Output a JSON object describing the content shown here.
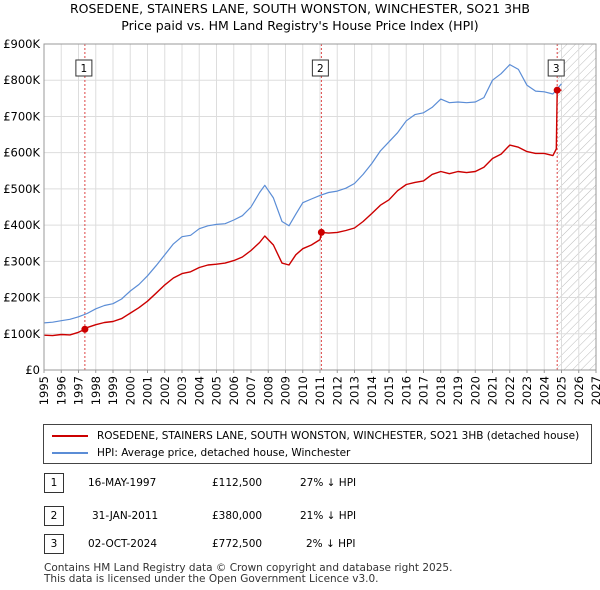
{
  "chart_data": {
    "type": "line",
    "title": "ROSEDENE, STAINERS LANE, SOUTH WONSTON, WINCHESTER, SO21 3HB",
    "subtitle": "Price paid vs. HM Land Registry's House Price Index (HPI)",
    "xlabel": "",
    "ylabel": "",
    "xlim": [
      1995,
      2027
    ],
    "ylim": [
      0,
      900000
    ],
    "y_ticks": [
      {
        "value": 0,
        "label": "£0"
      },
      {
        "value": 100000,
        "label": "£100K"
      },
      {
        "value": 200000,
        "label": "£200K"
      },
      {
        "value": 300000,
        "label": "£300K"
      },
      {
        "value": 400000,
        "label": "£400K"
      },
      {
        "value": 500000,
        "label": "£500K"
      },
      {
        "value": 600000,
        "label": "£600K"
      },
      {
        "value": 700000,
        "label": "£700K"
      },
      {
        "value": 800000,
        "label": "£800K"
      },
      {
        "value": 900000,
        "label": "£900K"
      }
    ],
    "x_ticks": [
      "1995",
      "1996",
      "1997",
      "1998",
      "1999",
      "2000",
      "2001",
      "2002",
      "2003",
      "2004",
      "2005",
      "2006",
      "2007",
      "2008",
      "2009",
      "2010",
      "2011",
      "2012",
      "2013",
      "2014",
      "2015",
      "2016",
      "2017",
      "2018",
      "2019",
      "2020",
      "2021",
      "2022",
      "2023",
      "2024",
      "2025",
      "2026",
      "2027"
    ],
    "grid": true,
    "hatch_from": 2024.75,
    "series": [
      {
        "name": "ROSEDENE, STAINERS LANE, SOUTH WONSTON, WINCHESTER, SO21 3HB (detached house)",
        "color": "#cc0000",
        "x": [
          1995.0,
          1995.5,
          1996.0,
          1996.5,
          1997.0,
          1997.37,
          1997.5,
          1998.0,
          1998.5,
          1999.0,
          1999.5,
          2000.0,
          2000.5,
          2001.0,
          2001.5,
          2002.0,
          2002.5,
          2003.0,
          2003.5,
          2004.0,
          2004.5,
          2005.0,
          2005.5,
          2006.0,
          2006.5,
          2007.0,
          2007.5,
          2007.8,
          2008.3,
          2008.8,
          2009.2,
          2009.6,
          2010.0,
          2010.5,
          2011.0,
          2011.08,
          2011.5,
          2012.0,
          2012.5,
          2013.0,
          2013.5,
          2014.0,
          2014.5,
          2015.0,
          2015.5,
          2016.0,
          2016.5,
          2017.0,
          2017.5,
          2018.0,
          2018.5,
          2019.0,
          2019.5,
          2020.0,
          2020.5,
          2021.0,
          2021.5,
          2022.0,
          2022.5,
          2023.0,
          2023.5,
          2024.0,
          2024.5,
          2024.7,
          2024.75,
          2025.0
        ],
        "values": [
          96000,
          95000,
          98000,
          97000,
          104000,
          112500,
          117000,
          125000,
          131000,
          134000,
          142000,
          157000,
          172000,
          190000,
          212000,
          235000,
          254000,
          266000,
          271000,
          283000,
          290000,
          292000,
          295000,
          302000,
          312000,
          330000,
          352000,
          370000,
          345000,
          295000,
          290000,
          318000,
          335000,
          345000,
          360000,
          380000,
          378000,
          380000,
          385000,
          392000,
          410000,
          432000,
          455000,
          470000,
          495000,
          512000,
          518000,
          522000,
          540000,
          548000,
          542000,
          548000,
          545000,
          548000,
          560000,
          584000,
          596000,
          621000,
          615000,
          603000,
          598000,
          598000,
          592000,
          610000,
          772500,
          772500
        ]
      },
      {
        "name": "HPI: Average price, detached house, Winchester",
        "color": "#5b8dd6",
        "x": [
          1995.0,
          1995.5,
          1996.0,
          1996.5,
          1997.0,
          1997.5,
          1998.0,
          1998.5,
          1999.0,
          1999.5,
          2000.0,
          2000.5,
          2001.0,
          2001.5,
          2002.0,
          2002.5,
          2003.0,
          2003.5,
          2004.0,
          2004.5,
          2005.0,
          2005.5,
          2006.0,
          2006.5,
          2007.0,
          2007.5,
          2007.8,
          2008.3,
          2008.8,
          2009.2,
          2009.6,
          2010.0,
          2010.5,
          2011.0,
          2011.5,
          2012.0,
          2012.5,
          2013.0,
          2013.5,
          2014.0,
          2014.5,
          2015.0,
          2015.5,
          2016.0,
          2016.5,
          2017.0,
          2017.5,
          2018.0,
          2018.5,
          2019.0,
          2019.5,
          2020.0,
          2020.5,
          2021.0,
          2021.5,
          2022.0,
          2022.5,
          2023.0,
          2023.5,
          2024.0,
          2024.5,
          2025.0
        ],
        "values": [
          130000,
          132000,
          136000,
          140000,
          147000,
          156000,
          169000,
          178000,
          183000,
          196000,
          218000,
          236000,
          260000,
          288000,
          318000,
          348000,
          368000,
          372000,
          390000,
          398000,
          402000,
          404000,
          414000,
          426000,
          450000,
          490000,
          510000,
          475000,
          410000,
          398000,
          430000,
          462000,
          472000,
          482000,
          490000,
          494000,
          502000,
          515000,
          540000,
          570000,
          605000,
          630000,
          655000,
          688000,
          705000,
          710000,
          725000,
          748000,
          738000,
          740000,
          738000,
          740000,
          752000,
          800000,
          818000,
          843000,
          830000,
          786000,
          770000,
          768000,
          762000,
          790000
        ]
      }
    ],
    "sales": [
      {
        "label": "1",
        "x": 1997.37,
        "value": 112500
      },
      {
        "label": "2",
        "x": 2011.08,
        "value": 380000
      },
      {
        "label": "3",
        "x": 2024.75,
        "value": 772500
      }
    ]
  },
  "legend": {
    "property_label": "ROSEDENE, STAINERS LANE, SOUTH WONSTON, WINCHESTER, SO21 3HB (detached house)",
    "hpi_label": "HPI: Average price, detached house, Winchester"
  },
  "transactions": [
    {
      "num": "1",
      "date": "16-MAY-1997",
      "price": "£112,500",
      "hpi": "27% ↓ HPI"
    },
    {
      "num": "2",
      "date": "31-JAN-2011",
      "price": "£380,000",
      "hpi": "21% ↓ HPI"
    },
    {
      "num": "3",
      "date": "02-OCT-2024",
      "price": "£772,500",
      "hpi": "2% ↓ HPI"
    }
  ],
  "footer": {
    "line1": "Contains HM Land Registry data © Crown copyright and database right 2025.",
    "line2": "This data is licensed under the Open Government Licence v3.0."
  }
}
